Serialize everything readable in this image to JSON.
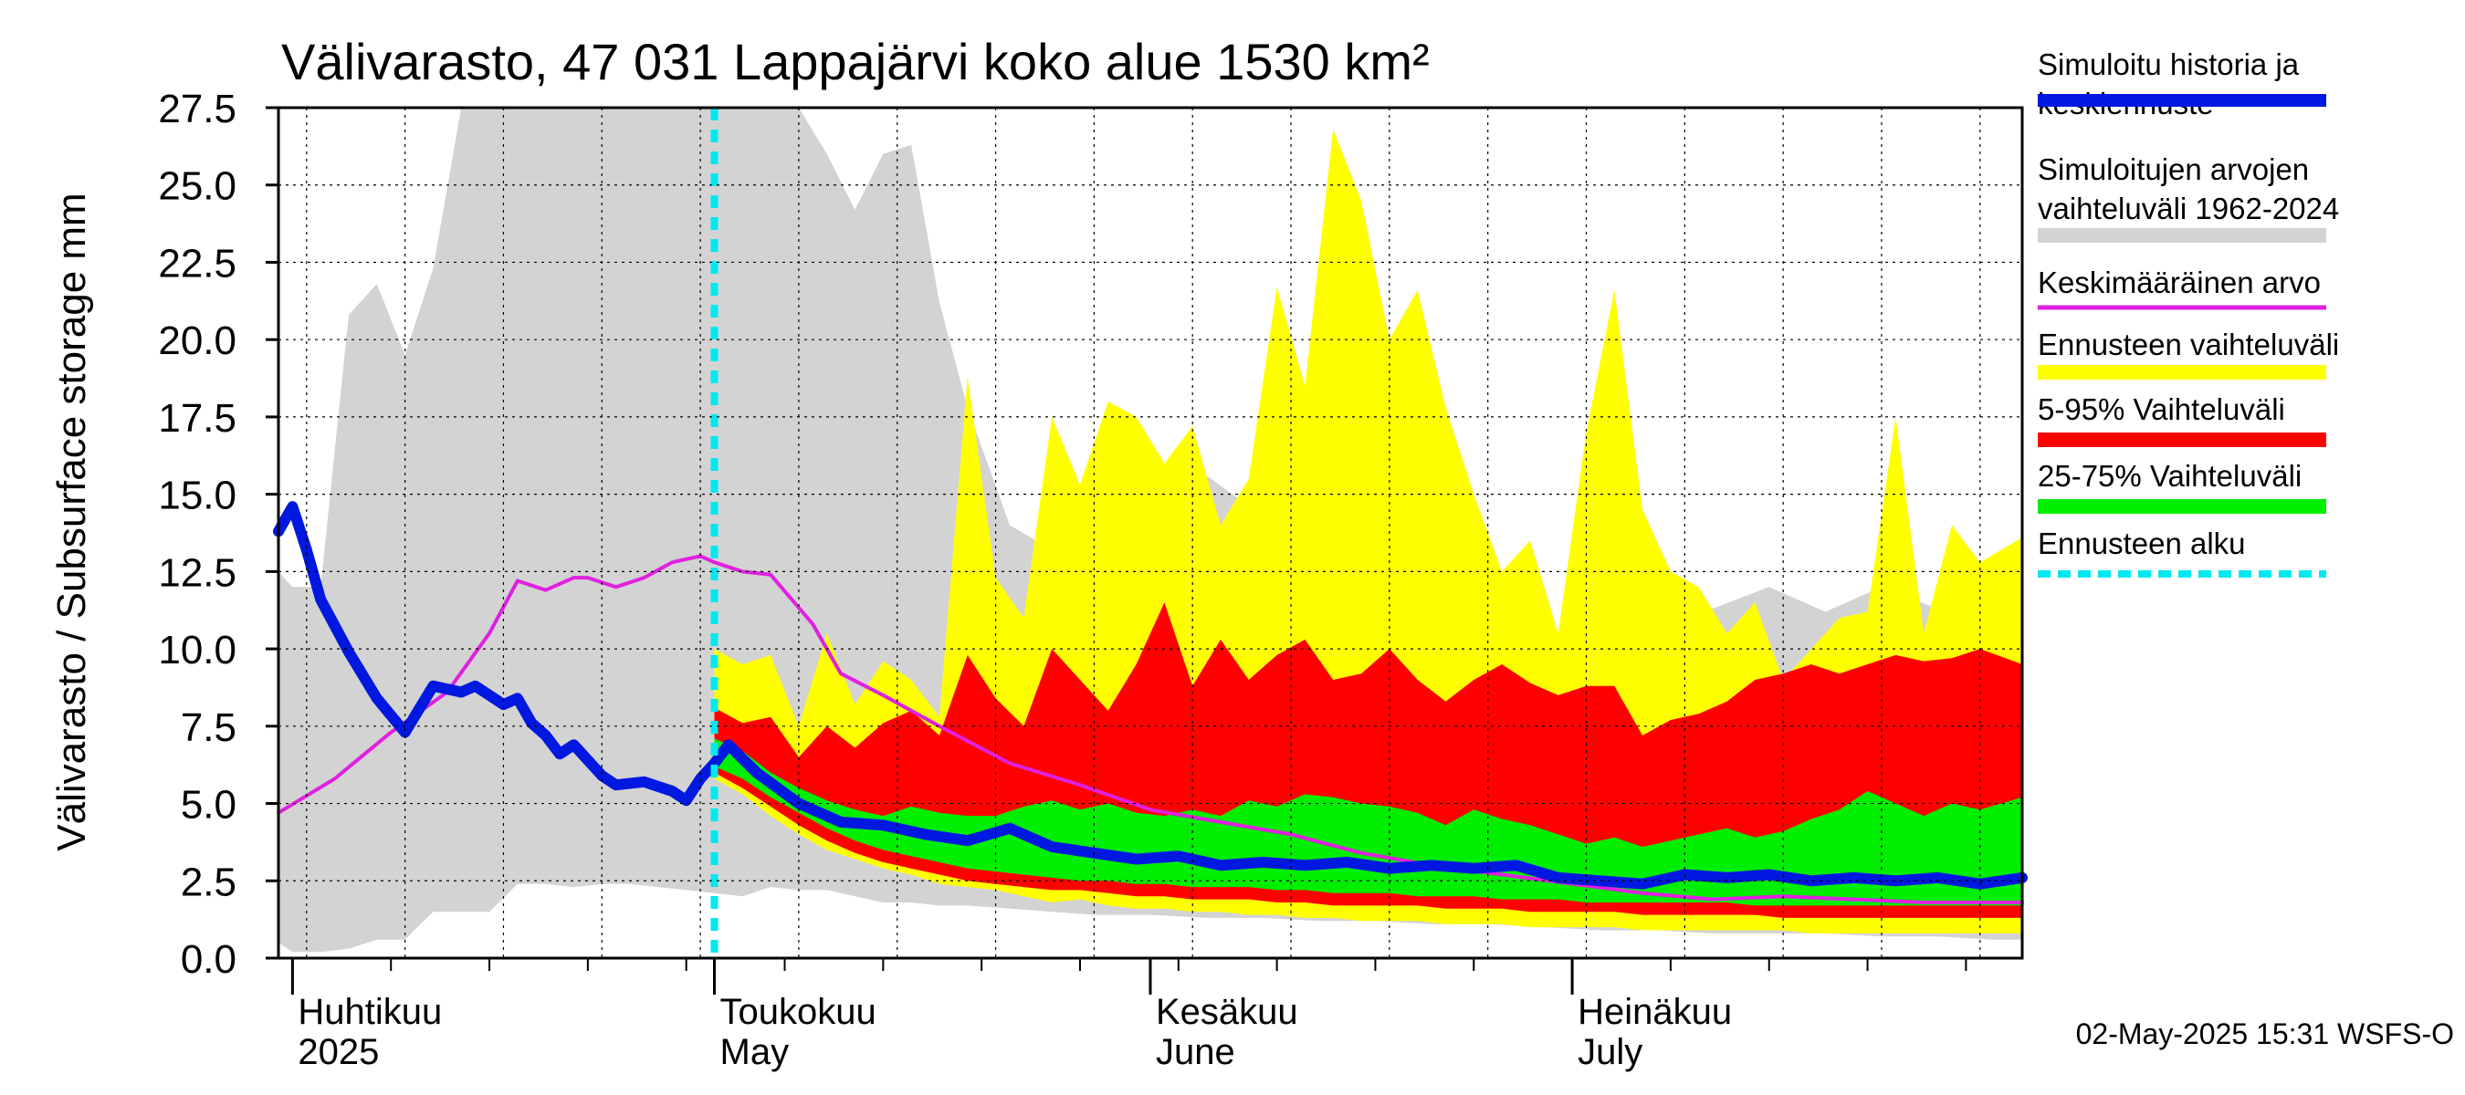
{
  "chart_data": {
    "type": "area",
    "title": "Välivarasto, 47 031 Lappajärvi koko alue 1530 km²",
    "ylabel": "Välivarasto / Subsurface storage  mm",
    "ylim": [
      0,
      27.5
    ],
    "yticks": [
      "0.0",
      "2.5",
      "5.0",
      "7.5",
      "10.0",
      "12.5",
      "15.0",
      "17.5",
      "20.0",
      "22.5",
      "25.0",
      "27.5"
    ],
    "xlim": [
      "2025-03-31",
      "2025-08-02"
    ],
    "grid": true,
    "months": [
      {
        "top": "Huhtikuu",
        "bottom": "2025",
        "date": "2025-04-01"
      },
      {
        "top": "Toukokuu",
        "bottom": "May",
        "date": "2025-05-01"
      },
      {
        "top": "Kesäkuu",
        "bottom": "June",
        "date": "2025-06-01"
      },
      {
        "top": "Heinäkuu",
        "bottom": "July",
        "date": "2025-07-01"
      }
    ],
    "forecast_start": "2025-05-01",
    "timestamp": "02-May-2025 15:31 WSFS-O",
    "legend": [
      {
        "label": "Simuloitu historia ja keskiennuste",
        "color": "#0018e0"
      },
      {
        "label": "Simuloitujen arvojen vaihteluväli 1962-2024",
        "color": "#d3d3d3"
      },
      {
        "label": "Keskimääräinen arvo",
        "color": "#e020e0"
      },
      {
        "label": "Ennusteen vaihteluväli",
        "color": "#ffff00"
      },
      {
        "label": "5-95% Vaihteluväli",
        "color": "#ff0000"
      },
      {
        "label": "25-75% Vaihteluväli",
        "color": "#00ee00"
      },
      {
        "label": "Ennusteen alku",
        "color": "#00e8f0"
      }
    ],
    "series": [
      {
        "name": "Simuloitu historia ja keskiennuste",
        "x": [
          "2025-03-31",
          "2025-04-01",
          "2025-04-02",
          "2025-04-03",
          "2025-04-05",
          "2025-04-07",
          "2025-04-09",
          "2025-04-11",
          "2025-04-13",
          "2025-04-14",
          "2025-04-15",
          "2025-04-16",
          "2025-04-17",
          "2025-04-18",
          "2025-04-19",
          "2025-04-20",
          "2025-04-21",
          "2025-04-23",
          "2025-04-24",
          "2025-04-26",
          "2025-04-28",
          "2025-04-29",
          "2025-04-30",
          "2025-05-01",
          "2025-05-02",
          "2025-05-04",
          "2025-05-07",
          "2025-05-10",
          "2025-05-13",
          "2025-05-16",
          "2025-05-19",
          "2025-05-22",
          "2025-05-25",
          "2025-05-28",
          "2025-05-31",
          "2025-06-03",
          "2025-06-06",
          "2025-06-09",
          "2025-06-12",
          "2025-06-15",
          "2025-06-18",
          "2025-06-21",
          "2025-06-24",
          "2025-06-27",
          "2025-06-30",
          "2025-07-03",
          "2025-07-06",
          "2025-07-09",
          "2025-07-12",
          "2025-07-15",
          "2025-07-18",
          "2025-07-21",
          "2025-07-24",
          "2025-07-27",
          "2025-07-30",
          "2025-08-02"
        ],
        "values": [
          13.8,
          14.6,
          13.2,
          11.6,
          9.9,
          8.4,
          7.3,
          8.8,
          8.6,
          8.8,
          8.5,
          8.2,
          8.4,
          7.6,
          7.2,
          6.6,
          6.9,
          5.9,
          5.6,
          5.7,
          5.4,
          5.1,
          5.8,
          6.3,
          6.9,
          6.0,
          5.0,
          4.4,
          4.3,
          4.0,
          3.8,
          4.2,
          3.6,
          3.4,
          3.2,
          3.3,
          3.0,
          3.1,
          3.0,
          3.1,
          2.9,
          3.0,
          2.9,
          3.0,
          2.6,
          2.5,
          2.4,
          2.7,
          2.6,
          2.7,
          2.5,
          2.6,
          2.5,
          2.6,
          2.4,
          2.6
        ]
      },
      {
        "name": "Keskimääräinen arvo",
        "x": [
          "2025-03-31",
          "2025-04-04",
          "2025-04-08",
          "2025-04-12",
          "2025-04-15",
          "2025-04-17",
          "2025-04-19",
          "2025-04-21",
          "2025-04-22",
          "2025-04-24",
          "2025-04-26",
          "2025-04-28",
          "2025-04-30",
          "2025-05-01",
          "2025-05-03",
          "2025-05-05",
          "2025-05-08",
          "2025-05-10",
          "2025-05-13",
          "2025-05-17",
          "2025-05-22",
          "2025-05-27",
          "2025-06-01",
          "2025-06-06",
          "2025-06-11",
          "2025-06-16",
          "2025-06-21",
          "2025-06-26",
          "2025-07-01",
          "2025-07-06",
          "2025-07-11",
          "2025-07-16",
          "2025-07-21",
          "2025-07-26",
          "2025-08-02"
        ],
        "values": [
          4.7,
          5.8,
          7.3,
          8.6,
          10.5,
          12.2,
          11.9,
          12.3,
          12.3,
          12.0,
          12.3,
          12.8,
          13.0,
          12.8,
          12.5,
          12.4,
          10.8,
          9.2,
          8.5,
          7.5,
          6.3,
          5.6,
          4.8,
          4.4,
          4.0,
          3.4,
          3.0,
          2.7,
          2.4,
          2.1,
          1.9,
          2.0,
          1.9,
          1.8,
          1.8
        ]
      },
      {
        "name": "Simuloitujen arvojen vaihteluväli 1962-2024",
        "x": [
          "2025-03-31",
          "2025-04-01",
          "2025-04-03",
          "2025-04-05",
          "2025-04-07",
          "2025-04-09",
          "2025-04-11",
          "2025-04-13",
          "2025-04-15",
          "2025-04-17",
          "2025-04-19",
          "2025-04-21",
          "2025-04-23",
          "2025-04-25",
          "2025-04-27",
          "2025-04-29",
          "2025-05-01",
          "2025-05-03",
          "2025-05-05",
          "2025-05-07",
          "2025-05-09",
          "2025-05-11",
          "2025-05-13",
          "2025-05-15",
          "2025-05-17",
          "2025-05-19",
          "2025-05-22",
          "2025-05-25",
          "2025-05-28",
          "2025-06-01",
          "2025-06-05",
          "2025-06-09",
          "2025-06-13",
          "2025-06-17",
          "2025-06-21",
          "2025-06-25",
          "2025-06-29",
          "2025-07-03",
          "2025-07-07",
          "2025-07-11",
          "2025-07-15",
          "2025-07-19",
          "2025-07-23",
          "2025-07-27",
          "2025-07-31",
          "2025-08-02"
        ],
        "lower": [
          0.5,
          0.2,
          0.2,
          0.3,
          0.6,
          0.6,
          1.5,
          1.5,
          1.5,
          2.4,
          2.4,
          2.3,
          2.4,
          2.4,
          2.3,
          2.2,
          2.1,
          2.0,
          2.3,
          2.2,
          2.2,
          2.0,
          1.8,
          1.8,
          1.7,
          1.7,
          1.6,
          1.5,
          1.4,
          1.4,
          1.3,
          1.3,
          1.2,
          1.2,
          1.1,
          1.1,
          1.0,
          0.9,
          0.9,
          0.8,
          0.8,
          0.8,
          0.7,
          0.7,
          0.6,
          0.6
        ],
        "upper": [
          12.5,
          12.0,
          12.0,
          20.8,
          21.8,
          19.5,
          22.3,
          27.5,
          27.5,
          27.5,
          27.5,
          27.5,
          27.5,
          27.5,
          27.5,
          27.5,
          27.5,
          27.5,
          27.5,
          27.5,
          26.0,
          24.2,
          26.0,
          26.3,
          21.2,
          17.8,
          14.0,
          13.2,
          12.5,
          12.5,
          15.6,
          14.3,
          15.6,
          13.5,
          11.5,
          10.9,
          9.5,
          10.0,
          11.5,
          11.3,
          12.0,
          11.2,
          12.0,
          11.3,
          11.4,
          11.1
        ]
      },
      {
        "name": "Ennusteen vaihteluväli",
        "x": [
          "2025-05-01",
          "2025-05-03",
          "2025-05-05",
          "2025-05-07",
          "2025-05-09",
          "2025-05-11",
          "2025-05-13",
          "2025-05-15",
          "2025-05-17",
          "2025-05-19",
          "2025-05-21",
          "2025-05-23",
          "2025-05-25",
          "2025-05-27",
          "2025-05-29",
          "2025-05-31",
          "2025-06-02",
          "2025-06-04",
          "2025-06-06",
          "2025-06-08",
          "2025-06-10",
          "2025-06-12",
          "2025-06-14",
          "2025-06-16",
          "2025-06-18",
          "2025-06-20",
          "2025-06-22",
          "2025-06-24",
          "2025-06-26",
          "2025-06-28",
          "2025-06-30",
          "2025-07-02",
          "2025-07-04",
          "2025-07-06",
          "2025-07-08",
          "2025-07-10",
          "2025-07-12",
          "2025-07-14",
          "2025-07-16",
          "2025-07-18",
          "2025-07-20",
          "2025-07-22",
          "2025-07-24",
          "2025-07-26",
          "2025-07-28",
          "2025-07-30",
          "2025-08-02"
        ],
        "lower": [
          5.8,
          5.3,
          4.6,
          4.0,
          3.5,
          3.2,
          2.9,
          2.7,
          2.4,
          2.3,
          2.2,
          2.0,
          1.8,
          1.9,
          1.7,
          1.6,
          1.6,
          1.5,
          1.5,
          1.4,
          1.4,
          1.3,
          1.3,
          1.2,
          1.2,
          1.2,
          1.1,
          1.1,
          1.1,
          1.0,
          1.0,
          1.0,
          1.0,
          0.9,
          0.9,
          0.9,
          0.9,
          0.9,
          0.9,
          0.8,
          0.8,
          0.8,
          0.8,
          0.8,
          0.8,
          0.8,
          0.8
        ],
        "upper": [
          10.0,
          9.5,
          9.8,
          7.5,
          10.5,
          8.2,
          9.6,
          9.0,
          7.8,
          18.8,
          12.3,
          11.0,
          17.5,
          15.3,
          18.0,
          17.5,
          16.0,
          17.2,
          14.0,
          15.5,
          21.7,
          18.5,
          26.8,
          24.5,
          20.0,
          21.6,
          17.8,
          15.0,
          12.5,
          13.5,
          10.5,
          17.0,
          21.6,
          14.5,
          12.5,
          12.0,
          10.5,
          11.5,
          9.0,
          10.0,
          11.0,
          11.2,
          17.5,
          10.5,
          14.0,
          12.8,
          13.6
        ]
      },
      {
        "name": "5-95% Vaihteluväli",
        "x": [
          "2025-05-01",
          "2025-05-03",
          "2025-05-05",
          "2025-05-07",
          "2025-05-09",
          "2025-05-11",
          "2025-05-13",
          "2025-05-15",
          "2025-05-17",
          "2025-05-19",
          "2025-05-21",
          "2025-05-23",
          "2025-05-25",
          "2025-05-27",
          "2025-05-29",
          "2025-05-31",
          "2025-06-02",
          "2025-06-04",
          "2025-06-06",
          "2025-06-08",
          "2025-06-10",
          "2025-06-12",
          "2025-06-14",
          "2025-06-16",
          "2025-06-18",
          "2025-06-20",
          "2025-06-22",
          "2025-06-24",
          "2025-06-26",
          "2025-06-28",
          "2025-06-30",
          "2025-07-02",
          "2025-07-04",
          "2025-07-06",
          "2025-07-08",
          "2025-07-10",
          "2025-07-12",
          "2025-07-14",
          "2025-07-16",
          "2025-07-18",
          "2025-07-20",
          "2025-07-22",
          "2025-07-24",
          "2025-07-26",
          "2025-07-28",
          "2025-07-30",
          "2025-08-02"
        ],
        "lower": [
          6.0,
          5.5,
          4.9,
          4.3,
          3.8,
          3.4,
          3.1,
          2.9,
          2.7,
          2.5,
          2.4,
          2.3,
          2.2,
          2.2,
          2.1,
          2.0,
          2.0,
          1.9,
          1.9,
          1.9,
          1.8,
          1.8,
          1.7,
          1.7,
          1.7,
          1.7,
          1.6,
          1.6,
          1.6,
          1.5,
          1.5,
          1.5,
          1.5,
          1.4,
          1.4,
          1.4,
          1.4,
          1.4,
          1.3,
          1.3,
          1.3,
          1.3,
          1.3,
          1.3,
          1.3,
          1.3,
          1.3
        ],
        "upper": [
          8.1,
          7.6,
          7.8,
          6.5,
          7.5,
          6.8,
          7.6,
          8.0,
          7.2,
          9.8,
          8.4,
          7.5,
          10.0,
          9.0,
          8.0,
          9.5,
          11.5,
          8.8,
          10.3,
          9.0,
          9.8,
          10.3,
          9.0,
          9.2,
          10.0,
          9.0,
          8.3,
          9.0,
          9.5,
          8.9,
          8.5,
          8.8,
          8.8,
          7.2,
          7.7,
          7.9,
          8.3,
          9.0,
          9.2,
          9.5,
          9.2,
          9.5,
          9.8,
          9.6,
          9.7,
          10.0,
          9.5
        ]
      },
      {
        "name": "25-75% Vaihteluväli",
        "x": [
          "2025-05-01",
          "2025-05-03",
          "2025-05-05",
          "2025-05-07",
          "2025-05-09",
          "2025-05-11",
          "2025-05-13",
          "2025-05-15",
          "2025-05-17",
          "2025-05-19",
          "2025-05-21",
          "2025-05-23",
          "2025-05-25",
          "2025-05-27",
          "2025-05-29",
          "2025-05-31",
          "2025-06-02",
          "2025-06-04",
          "2025-06-06",
          "2025-06-08",
          "2025-06-10",
          "2025-06-12",
          "2025-06-14",
          "2025-06-16",
          "2025-06-18",
          "2025-06-20",
          "2025-06-22",
          "2025-06-24",
          "2025-06-26",
          "2025-06-28",
          "2025-06-30",
          "2025-07-02",
          "2025-07-04",
          "2025-07-06",
          "2025-07-08",
          "2025-07-10",
          "2025-07-12",
          "2025-07-14",
          "2025-07-16",
          "2025-07-18",
          "2025-07-20",
          "2025-07-22",
          "2025-07-24",
          "2025-07-26",
          "2025-07-28",
          "2025-07-30",
          "2025-08-02"
        ],
        "lower": [
          6.2,
          5.8,
          5.2,
          4.7,
          4.2,
          3.8,
          3.5,
          3.3,
          3.1,
          2.9,
          2.8,
          2.7,
          2.6,
          2.5,
          2.5,
          2.4,
          2.4,
          2.3,
          2.3,
          2.3,
          2.2,
          2.2,
          2.1,
          2.1,
          2.1,
          2.0,
          2.0,
          2.0,
          1.9,
          1.9,
          1.9,
          1.8,
          1.8,
          1.8,
          1.8,
          1.8,
          1.8,
          1.7,
          1.7,
          1.7,
          1.7,
          1.7,
          1.7,
          1.7,
          1.7,
          1.7,
          1.7
        ],
        "upper": [
          7.1,
          6.7,
          6.0,
          5.5,
          5.1,
          4.8,
          4.6,
          4.9,
          4.7,
          4.6,
          4.6,
          4.9,
          5.1,
          4.8,
          5.0,
          4.7,
          4.6,
          4.8,
          4.6,
          5.1,
          4.9,
          5.3,
          5.2,
          5.0,
          4.9,
          4.7,
          4.3,
          4.8,
          4.5,
          4.3,
          4.0,
          3.7,
          3.9,
          3.6,
          3.8,
          4.0,
          4.2,
          3.9,
          4.1,
          4.5,
          4.8,
          5.4,
          5.0,
          4.6,
          5.0,
          4.8,
          5.2
        ]
      }
    ]
  }
}
